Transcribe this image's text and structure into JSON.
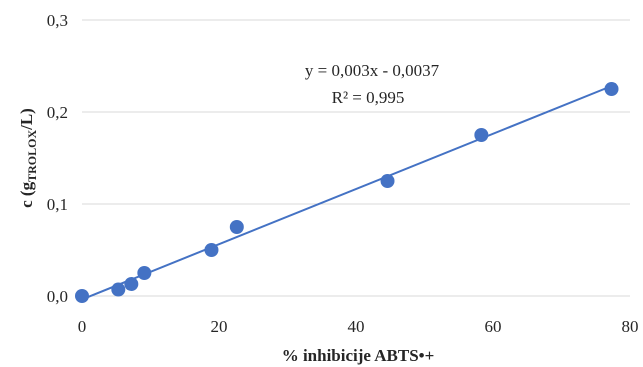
{
  "chart_data": {
    "type": "scatter",
    "title": "",
    "xlabel": "% inhibicije ABTS•+",
    "ylabel": {
      "prefix": "c (g",
      "subscript": "TROLOX",
      "suffix": "/L)"
    },
    "xlim": [
      0,
      80
    ],
    "ylim": [
      0,
      0.3
    ],
    "x_ticks": [
      0,
      20,
      40,
      60,
      80
    ],
    "x_tick_labels": [
      "0",
      "20",
      "40",
      "60",
      "80"
    ],
    "y_ticks": [
      0,
      0.1,
      0.2,
      0.3
    ],
    "y_tick_labels": [
      "0,0",
      "0,1",
      "0,2",
      "0,3"
    ],
    "grid": "horizontal",
    "legend": "none",
    "series": [
      {
        "color": "#4472C4",
        "points": [
          {
            "x": 0,
            "y": 0.0
          },
          {
            "x": 5.3,
            "y": 0.007
          },
          {
            "x": 7.2,
            "y": 0.013
          },
          {
            "x": 9.1,
            "y": 0.025
          },
          {
            "x": 18.9,
            "y": 0.05
          },
          {
            "x": 22.6,
            "y": 0.075
          },
          {
            "x": 44.6,
            "y": 0.125
          },
          {
            "x": 58.3,
            "y": 0.175
          },
          {
            "x": 77.3,
            "y": 0.225
          }
        ]
      }
    ],
    "trendline": {
      "type": "linear",
      "slope": 0.003,
      "intercept": -0.0037,
      "color": "#4472C4",
      "x_range": [
        0,
        78
      ]
    },
    "annotations": {
      "equation": "y = 0,003x - 0,0037",
      "r_squared": "R² = 0,995"
    },
    "colors": {
      "marker": "#4472C4",
      "line": "#4472C4",
      "gridline": "#d9d9d9",
      "text": "#262626"
    }
  }
}
